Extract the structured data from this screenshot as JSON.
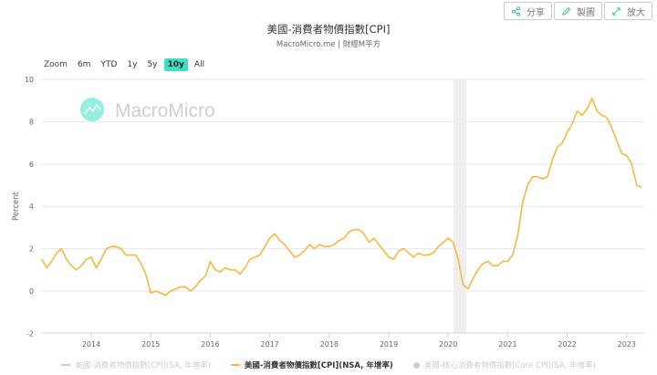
{
  "toolbar": {
    "share_label": "分享",
    "draw_label": "製圖",
    "expand_label": "放大"
  },
  "header": {
    "title": "美國-消費者物價指數[CPI]",
    "subtitle": "MacroMicro.me | 財經M平方"
  },
  "range_selector": {
    "label": "Zoom",
    "buttons": [
      {
        "label": "6m",
        "active": false
      },
      {
        "label": "YTD",
        "active": false
      },
      {
        "label": "1y",
        "active": false
      },
      {
        "label": "5y",
        "active": false
      },
      {
        "label": "10y",
        "active": true
      },
      {
        "label": "All",
        "active": false
      }
    ]
  },
  "watermark": "MacroMicro",
  "colors": {
    "series_line": "#f5b942",
    "active_range": "#3ee0c4",
    "watermark_logo": "#3ee0c4",
    "recession_band": "#eeeeee",
    "grid": "#e6e6e6",
    "legend_inactive": "#cccccc"
  },
  "legend": [
    {
      "label": "美國-消費者物價指數[CPI](SA, 年增率)",
      "active": false,
      "marker": "line"
    },
    {
      "label": "美國-消費者物價指數[CPI](NSA, 年增率)",
      "active": true,
      "marker": "line"
    },
    {
      "label": "美國-核心消費者物價指數[Core CPI](SA, 年增率)",
      "active": false,
      "marker": "dot"
    }
  ],
  "chart_data": {
    "type": "line",
    "title": "美國-消費者物價指數[CPI]",
    "subtitle": "MacroMicro.me | 財經M平方",
    "xlabel": "",
    "ylabel": "Percent",
    "ylim": [
      -2,
      10
    ],
    "yticks": [
      -2,
      0,
      2,
      4,
      6,
      8,
      10
    ],
    "xticks": [
      "2014",
      "2015",
      "2016",
      "2017",
      "2018",
      "2019",
      "2020",
      "2021",
      "2022",
      "2023"
    ],
    "grid": true,
    "legend_position": "bottom",
    "shaded_regions": [
      {
        "from": "2020-02",
        "to": "2020-04",
        "label": "recession"
      }
    ],
    "series": [
      {
        "name": "美國-消費者物價指數[CPI](NSA, 年增率)",
        "x": [
          "2013-03",
          "2013-04",
          "2013-05",
          "2013-06",
          "2013-07",
          "2013-08",
          "2013-09",
          "2013-10",
          "2013-11",
          "2013-12",
          "2014-01",
          "2014-02",
          "2014-03",
          "2014-04",
          "2014-05",
          "2014-06",
          "2014-07",
          "2014-08",
          "2014-09",
          "2014-10",
          "2014-11",
          "2014-12",
          "2015-01",
          "2015-02",
          "2015-03",
          "2015-04",
          "2015-05",
          "2015-06",
          "2015-07",
          "2015-08",
          "2015-09",
          "2015-10",
          "2015-11",
          "2015-12",
          "2016-01",
          "2016-02",
          "2016-03",
          "2016-04",
          "2016-05",
          "2016-06",
          "2016-07",
          "2016-08",
          "2016-09",
          "2016-10",
          "2016-11",
          "2016-12",
          "2017-01",
          "2017-02",
          "2017-03",
          "2017-04",
          "2017-05",
          "2017-06",
          "2017-07",
          "2017-08",
          "2017-09",
          "2017-10",
          "2017-11",
          "2017-12",
          "2018-01",
          "2018-02",
          "2018-03",
          "2018-04",
          "2018-05",
          "2018-06",
          "2018-07",
          "2018-08",
          "2018-09",
          "2018-10",
          "2018-11",
          "2018-12",
          "2019-01",
          "2019-02",
          "2019-03",
          "2019-04",
          "2019-05",
          "2019-06",
          "2019-07",
          "2019-08",
          "2019-09",
          "2019-10",
          "2019-11",
          "2019-12",
          "2020-01",
          "2020-02",
          "2020-03",
          "2020-04",
          "2020-05",
          "2020-06",
          "2020-07",
          "2020-08",
          "2020-09",
          "2020-10",
          "2020-11",
          "2020-12",
          "2021-01",
          "2021-02",
          "2021-03",
          "2021-04",
          "2021-05",
          "2021-06",
          "2021-07",
          "2021-08",
          "2021-09",
          "2021-10",
          "2021-11",
          "2021-12",
          "2022-01",
          "2022-02",
          "2022-03",
          "2022-04",
          "2022-05",
          "2022-06",
          "2022-07",
          "2022-08",
          "2022-09",
          "2022-10",
          "2022-11",
          "2022-12",
          "2023-01",
          "2023-02",
          "2023-03",
          "2023-04"
        ],
        "values": [
          1.5,
          1.1,
          1.4,
          1.8,
          2.0,
          1.5,
          1.2,
          1.0,
          1.2,
          1.5,
          1.6,
          1.1,
          1.5,
          2.0,
          2.1,
          2.1,
          2.0,
          1.7,
          1.7,
          1.7,
          1.3,
          0.8,
          -0.1,
          0.0,
          -0.1,
          -0.2,
          0.0,
          0.1,
          0.2,
          0.2,
          0.0,
          0.2,
          0.5,
          0.7,
          1.4,
          1.0,
          0.9,
          1.1,
          1.0,
          1.0,
          0.8,
          1.1,
          1.5,
          1.6,
          1.7,
          2.1,
          2.5,
          2.7,
          2.4,
          2.2,
          1.9,
          1.6,
          1.7,
          1.9,
          2.2,
          2.0,
          2.2,
          2.1,
          2.1,
          2.2,
          2.4,
          2.5,
          2.8,
          2.9,
          2.9,
          2.7,
          2.3,
          2.5,
          2.2,
          1.9,
          1.6,
          1.5,
          1.9,
          2.0,
          1.8,
          1.6,
          1.8,
          1.7,
          1.7,
          1.8,
          2.1,
          2.3,
          2.5,
          2.3,
          1.5,
          0.3,
          0.1,
          0.6,
          1.0,
          1.3,
          1.4,
          1.2,
          1.2,
          1.4,
          1.4,
          1.7,
          2.6,
          4.2,
          5.0,
          5.4,
          5.4,
          5.3,
          5.4,
          6.2,
          6.8,
          7.0,
          7.5,
          7.9,
          8.5,
          8.3,
          8.6,
          9.1,
          8.5,
          8.3,
          8.2,
          7.7,
          7.1,
          6.5,
          6.4,
          6.0,
          5.0,
          4.9
        ]
      }
    ]
  }
}
